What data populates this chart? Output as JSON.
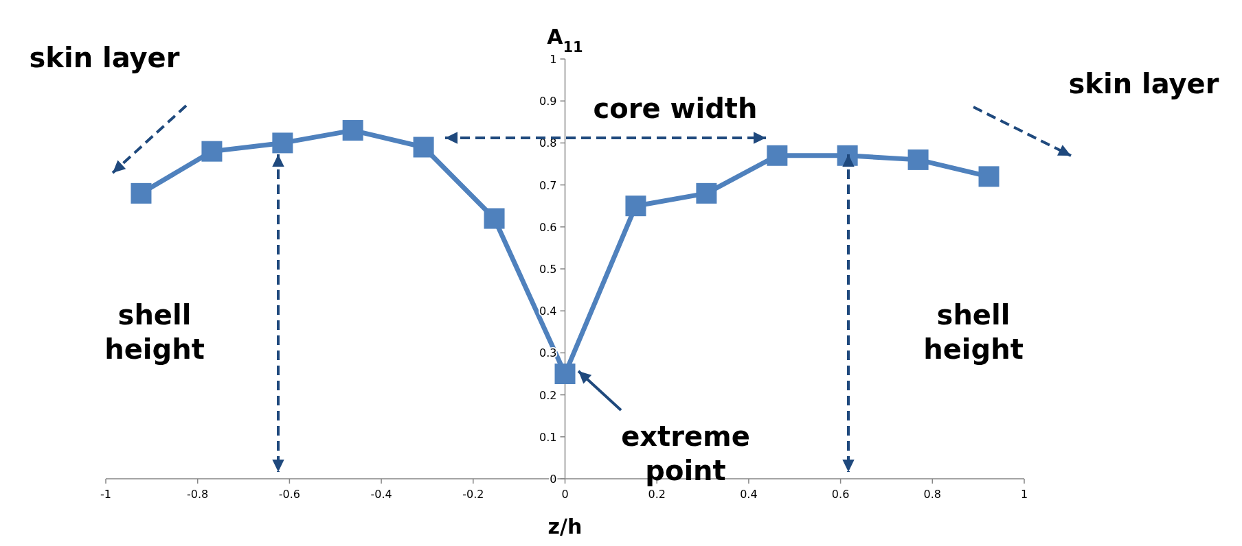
{
  "chart_data": {
    "type": "line",
    "xlabel": "z/h",
    "ylabel": "A$_{11}$",
    "x": [
      -0.923,
      -0.769,
      -0.615,
      -0.462,
      -0.308,
      -0.154,
      0,
      0.154,
      0.308,
      0.462,
      0.615,
      0.769,
      0.923
    ],
    "series": [
      {
        "color": "#4f81bd",
        "values": [
          0.68,
          0.78,
          0.8,
          0.83,
          0.79,
          0.62,
          0.25,
          0.65,
          0.68,
          0.77,
          0.77,
          0.76,
          0.72
        ]
      }
    ],
    "xlim": [
      -1,
      1
    ],
    "ylim": [
      0,
      1
    ],
    "xticks": [
      -1,
      -0.8,
      -0.6,
      -0.4,
      -0.2,
      0,
      0.2,
      0.4,
      0.6,
      0.8,
      1
    ],
    "yticks": [
      0,
      0.1,
      0.2,
      0.3,
      0.4,
      0.5,
      0.6,
      0.7,
      0.8,
      0.9,
      1
    ],
    "marker": "square",
    "line_style": "solid",
    "grid": false,
    "annotations": [
      "skin layer",
      "skin layer",
      "core width",
      "shell height",
      "shell height",
      "extreme point"
    ]
  }
}
